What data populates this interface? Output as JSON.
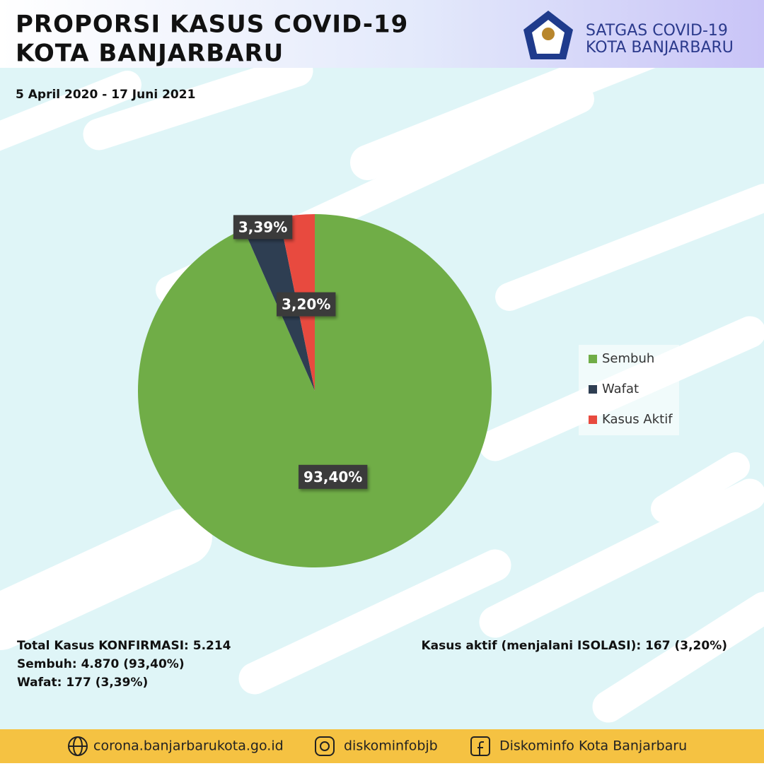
{
  "header": {
    "title_lines": [
      "PROPORSI KASUS COVID-19",
      "KOTA BANJARBARU"
    ],
    "org_lines": [
      "SATGAS COVID-19",
      "KOTA BANJARBARU"
    ],
    "date_range": "5 April 2020 - 17 Juni 2021"
  },
  "chart_data": {
    "type": "pie",
    "categories": [
      "Sembuh",
      "Wafat",
      "Kasus Aktif"
    ],
    "values": [
      93.4,
      3.39,
      3.2
    ],
    "value_labels": [
      "93,40%",
      "3,39%",
      "3,20%"
    ],
    "colors": [
      "#70ad47",
      "#2e3e52",
      "#e84a3f"
    ],
    "legend": "right"
  },
  "summary": {
    "left": [
      "Total Kasus KONFIRMASI: 5.214",
      "Sembuh: 4.870 (93,40%)",
      "Wafat: 177 (3,39%)"
    ],
    "right": "Kasus aktif (menjalani ISOLASI): 167 (3,20%)"
  },
  "footer": [
    "corona.banjarbarukota.go.id",
    "diskominfobjb",
    "Diskominfo Kota Banjarbaru"
  ]
}
